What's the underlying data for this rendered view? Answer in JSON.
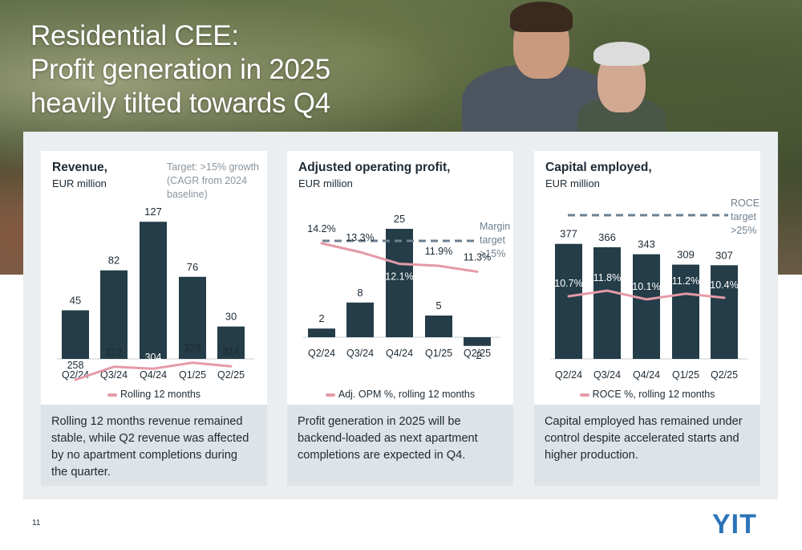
{
  "slide": {
    "title_lines": [
      "Residential CEE:",
      "Profit generation in 2025",
      "heavily tilted towards Q4"
    ],
    "page_number": "11",
    "logo_text": "YIT"
  },
  "colors": {
    "bar": "#243d48",
    "line": "#e49aa7",
    "target": "#6e8090",
    "text": "#1d2a34"
  },
  "chart_data": [
    {
      "type": "bar",
      "title": "Revenue,",
      "unit": "EUR million",
      "target_lines": [
        "Target: >15% growth",
        "(CAGR from 2024 baseline)"
      ],
      "categories": [
        "Q2/24",
        "Q3/24",
        "Q4/24",
        "Q1/25",
        "Q2/25"
      ],
      "values": [
        45,
        82,
        127,
        76,
        30
      ],
      "line_series": {
        "name": "Rolling 12 months",
        "values": [
          258,
          312,
          304,
          329,
          314
        ],
        "labels": [
          "258",
          "312",
          "304",
          "329",
          "314"
        ]
      },
      "legend": "Rolling 12 months",
      "note": "Rolling 12 months revenue remained stable, while Q2 revenue was affected by no apartment completions during the quarter."
    },
    {
      "type": "bar",
      "title": "Adjusted operating profit,",
      "unit": "EUR million",
      "categories": [
        "Q2/24",
        "Q3/24",
        "Q4/24",
        "Q1/25",
        "Q2/25"
      ],
      "values": [
        2,
        8,
        25,
        5,
        -2
      ],
      "line_series": {
        "name": "Adj. OPM %, rolling 12 months",
        "values": [
          14.2,
          13.3,
          12.1,
          11.9,
          11.3
        ],
        "labels": [
          "14.2%",
          "13.3%",
          "12.1%",
          "11.9%",
          "11.3%"
        ]
      },
      "target_label_lines": [
        "Margin",
        "target",
        ">15%"
      ],
      "target_value": 15,
      "legend": "Adj. OPM %, rolling 12 months",
      "note": "Profit generation in 2025 will be backend-loaded as next apartment completions are expected in Q4."
    },
    {
      "type": "bar",
      "title": "Capital employed,",
      "unit": "EUR million",
      "categories": [
        "Q2/24",
        "Q3/24",
        "Q4/24",
        "Q1/25",
        "Q2/25"
      ],
      "values": [
        377,
        366,
        343,
        309,
        307
      ],
      "line_series": {
        "name": "ROCE %, rolling 12 months",
        "values": [
          10.7,
          11.8,
          10.1,
          11.2,
          10.4
        ],
        "labels": [
          "10.7%",
          "11.8%",
          "10.1%",
          "11.2%",
          "10.4%"
        ]
      },
      "target_label_lines": [
        "ROCE",
        "target",
        ">25%"
      ],
      "target_value": 25,
      "legend": "ROCE %, rolling 12 months",
      "note": "Capital employed has remained under control despite accelerated starts and higher production."
    }
  ]
}
